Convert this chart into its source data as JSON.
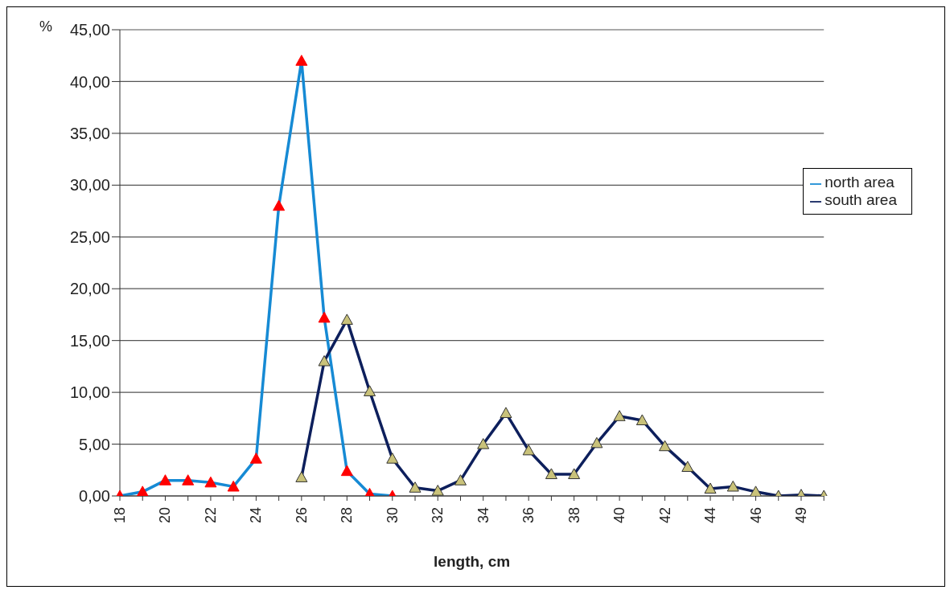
{
  "chart_data": {
    "type": "line",
    "xlabel": "length, cm",
    "ylabel": "%",
    "categories": [
      "18",
      null,
      "20",
      null,
      "22",
      null,
      "24",
      null,
      "26",
      null,
      "28",
      null,
      "30",
      null,
      "32",
      null,
      "34",
      null,
      "36",
      null,
      "38",
      null,
      "40",
      null,
      "42",
      null,
      "44",
      null,
      "46",
      null,
      "49",
      null
    ],
    "series": [
      {
        "name": "north area",
        "color": "#168ad4",
        "values": [
          0.0,
          0.4,
          1.5,
          1.5,
          1.3,
          0.9,
          3.6,
          28,
          42,
          17.2,
          2.4,
          0.2,
          0.0,
          null,
          null,
          null,
          null,
          null,
          null,
          null,
          null,
          null,
          null,
          null,
          null,
          null,
          null,
          null,
          null,
          null,
          null,
          null
        ]
      },
      {
        "name": "south area",
        "color": "#0d1f5c",
        "values": [
          null,
          null,
          null,
          null,
          null,
          null,
          null,
          null,
          1.8,
          13,
          17,
          10.1,
          3.6,
          0.8,
          0.5,
          1.5,
          5,
          8,
          4.4,
          2.1,
          2.1,
          5.1,
          7.7,
          7.3,
          4.8,
          2.8,
          0.7,
          0.9,
          0.4,
          0.0,
          0.1,
          0.0
        ]
      }
    ],
    "ylim": [
      0,
      45
    ],
    "yticks": [
      {
        "value": 0,
        "label": "0,00"
      },
      {
        "value": 5,
        "label": "5,00"
      },
      {
        "value": 10,
        "label": "10,00"
      },
      {
        "value": 15,
        "label": "15,00"
      },
      {
        "value": 20,
        "label": "20,00"
      },
      {
        "value": 25,
        "label": "25,00"
      },
      {
        "value": 30,
        "label": "30,00"
      },
      {
        "value": 35,
        "label": "35,00"
      },
      {
        "value": 40,
        "label": "40,00"
      },
      {
        "value": 45,
        "label": "45,00"
      }
    ],
    "grid": "y",
    "legend": "right",
    "marker": "triangle",
    "line_style": "solid"
  }
}
